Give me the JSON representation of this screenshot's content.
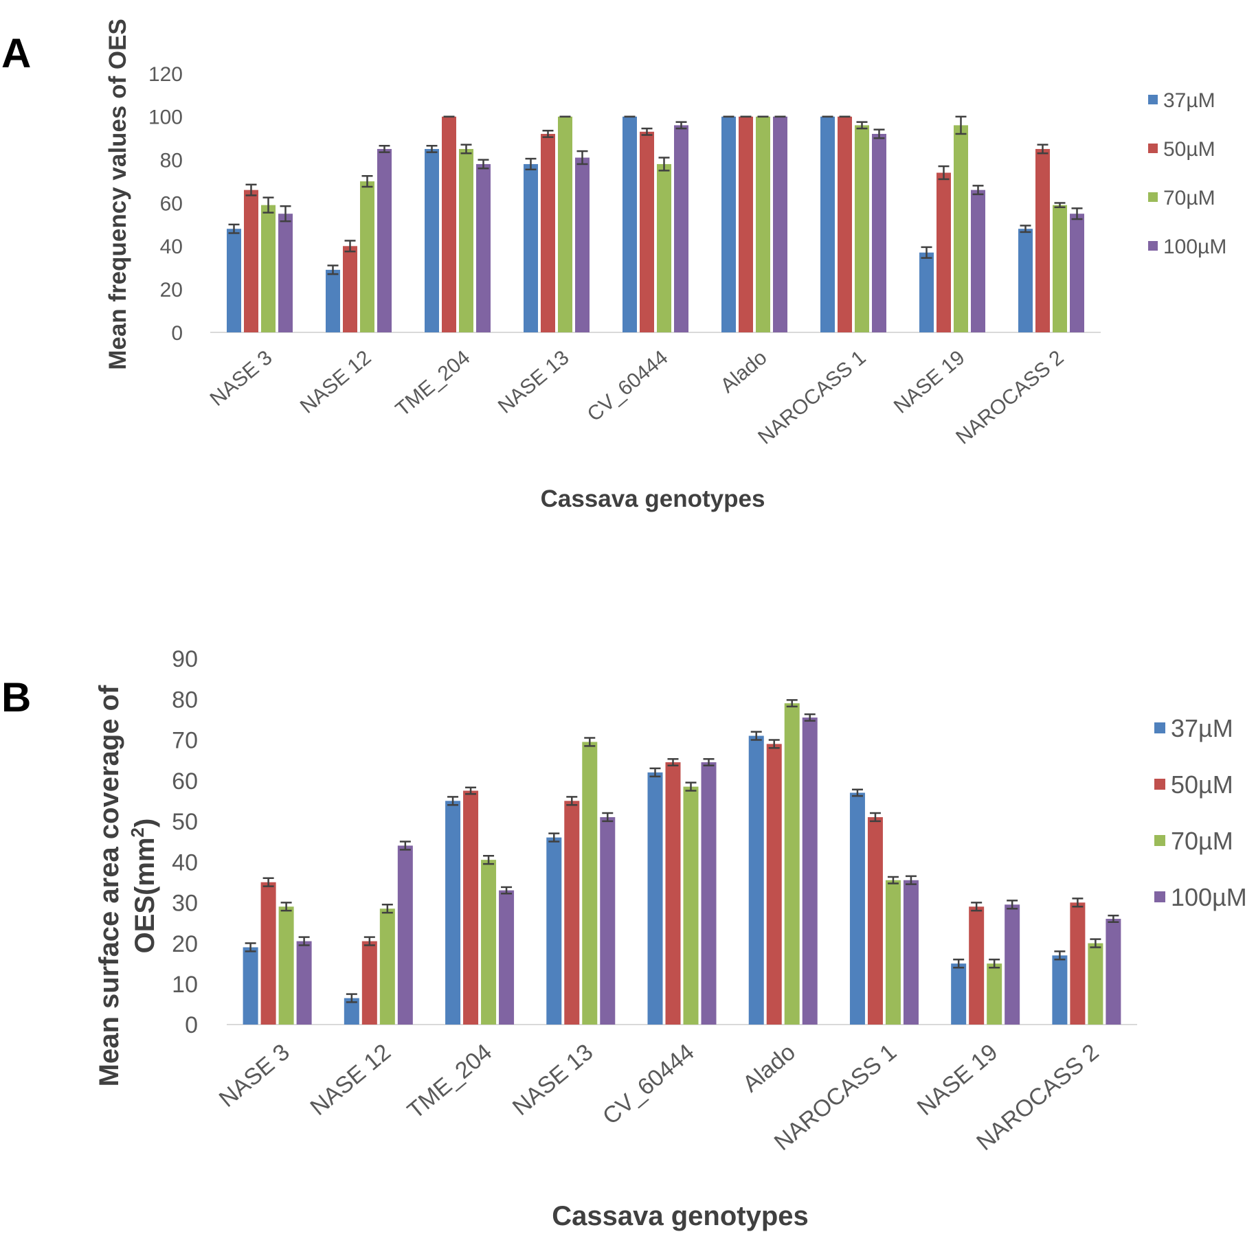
{
  "panels": [
    {
      "label": "A",
      "chart_data": {
        "type": "bar",
        "title": "",
        "xlabel": "Cassava genotypes",
        "ylabel": "Mean frequency values of OES",
        "ylim": [
          0,
          120
        ],
        "yticks": [
          0,
          20,
          40,
          60,
          80,
          100,
          120
        ],
        "categories": [
          "NASE 3",
          "NASE 12",
          "TME_204",
          "NASE 13",
          "CV_60444",
          "Alado",
          "NAROCASS 1",
          "NASE 19",
          "NAROCASS 2"
        ],
        "legend_position": "right",
        "series": [
          {
            "name": "37µM",
            "color": "#4F81BD",
            "values": [
              48,
              29,
              85,
              78,
              100,
              100,
              100,
              37,
              48
            ],
            "errors": [
              2,
              2,
              1.5,
              2.5,
              0,
              0,
              0,
              2.5,
              1.5
            ]
          },
          {
            "name": "50µM",
            "color": "#C0504D",
            "values": [
              66,
              40,
              100,
              92,
              93,
              100,
              100,
              74,
              85
            ],
            "errors": [
              2.5,
              2.5,
              0,
              1.5,
              1.5,
              0,
              0,
              3,
              2
            ]
          },
          {
            "name": "70µM",
            "color": "#9BBB59",
            "values": [
              59,
              70,
              85,
              100,
              78,
              100,
              96,
              96,
              59
            ],
            "errors": [
              3.5,
              2.5,
              2,
              0,
              3,
              0,
              1.5,
              4,
              1
            ]
          },
          {
            "name": "100µM",
            "color": "#8064A2",
            "values": [
              55,
              85,
              78,
              81,
              96,
              100,
              92,
              66,
              55
            ],
            "errors": [
              3.5,
              1.5,
              2,
              3,
              1.5,
              0,
              2,
              2,
              2.5
            ]
          }
        ]
      }
    },
    {
      "label": "B",
      "chart_data": {
        "type": "bar",
        "title": "",
        "xlabel": "Cassava genotypes",
        "ylabel_line1": "Mean surface area coverage of",
        "ylabel_line2": "OES(mm",
        "ylabel_sup": "2",
        "ylabel_close": ")",
        "ylim": [
          0,
          90
        ],
        "yticks": [
          0,
          10,
          20,
          30,
          40,
          50,
          60,
          70,
          80,
          90
        ],
        "categories": [
          "NASE 3",
          "NASE 12",
          "TME_204",
          "NASE 13",
          "CV_60444",
          "Alado",
          "NAROCASS 1",
          "NASE 19",
          "NAROCASS 2"
        ],
        "legend_position": "right",
        "series": [
          {
            "name": "37µM",
            "color": "#4F81BD",
            "values": [
              19,
              6.5,
              55,
              46,
              62,
              71,
              57,
              15,
              17
            ],
            "errors": [
              1,
              1,
              1,
              1,
              1,
              1,
              0.8,
              1,
              1
            ]
          },
          {
            "name": "50µM",
            "color": "#C0504D",
            "values": [
              35,
              20.5,
              57.5,
              55,
              64.5,
              69,
              51,
              29,
              30
            ],
            "errors": [
              1,
              1,
              0.8,
              1,
              0.8,
              1,
              1,
              1,
              1
            ]
          },
          {
            "name": "70µM",
            "color": "#9BBB59",
            "values": [
              29,
              28.5,
              40.5,
              69.5,
              58.5,
              79,
              35.5,
              15,
              20
            ],
            "errors": [
              1,
              1,
              1,
              1,
              1,
              0.8,
              0.8,
              1,
              1
            ]
          },
          {
            "name": "100µM",
            "color": "#8064A2",
            "values": [
              20.5,
              44,
              33,
              51,
              64.5,
              75.5,
              35.5,
              29.5,
              26
            ],
            "errors": [
              1,
              1,
              0.8,
              1,
              0.8,
              0.8,
              1,
              1,
              0.8
            ]
          }
        ]
      }
    }
  ]
}
